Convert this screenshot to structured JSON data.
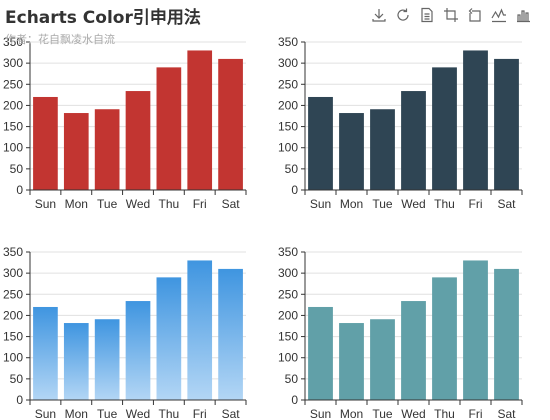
{
  "title": "Echarts Color引申用法",
  "subtitle": "作者：花自飘凌水自流",
  "toolbox": [
    {
      "name": "save-image-icon"
    },
    {
      "name": "restore-icon"
    },
    {
      "name": "data-view-icon"
    },
    {
      "name": "zoom-icon"
    },
    {
      "name": "zoom-reset-icon"
    },
    {
      "name": "line-chart-icon"
    },
    {
      "name": "bar-chart-icon"
    }
  ],
  "chart_data": [
    {
      "type": "bar",
      "categories": [
        "Sun",
        "Mon",
        "Tue",
        "Wed",
        "Thu",
        "Fri",
        "Sat"
      ],
      "values": [
        220,
        182,
        191,
        234,
        290,
        330,
        310
      ],
      "ylim": [
        0,
        350
      ],
      "yticks": [
        0,
        50,
        100,
        150,
        200,
        250,
        300,
        350
      ],
      "grid": true,
      "color": "#c23531",
      "fill": "solid"
    },
    {
      "type": "bar",
      "categories": [
        "Sun",
        "Mon",
        "Tue",
        "Wed",
        "Thu",
        "Fri",
        "Sat"
      ],
      "values": [
        220,
        182,
        191,
        234,
        290,
        330,
        310
      ],
      "ylim": [
        0,
        350
      ],
      "yticks": [
        0,
        50,
        100,
        150,
        200,
        250,
        300,
        350
      ],
      "grid": true,
      "color": "#2f4554",
      "fill": "solid"
    },
    {
      "type": "bar",
      "categories": [
        "Sun",
        "Mon",
        "Tue",
        "Wed",
        "Thu",
        "Fri",
        "Sat"
      ],
      "values": [
        220,
        182,
        191,
        234,
        290,
        330,
        310
      ],
      "ylim": [
        0,
        350
      ],
      "yticks": [
        0,
        50,
        100,
        150,
        200,
        250,
        300,
        350
      ],
      "grid": true,
      "color": "#3f95e0",
      "color_end": "#b3d6f5",
      "fill": "gradient"
    },
    {
      "type": "bar",
      "categories": [
        "Sun",
        "Mon",
        "Tue",
        "Wed",
        "Thu",
        "Fri",
        "Sat"
      ],
      "values": [
        220,
        182,
        191,
        234,
        290,
        330,
        310
      ],
      "ylim": [
        0,
        350
      ],
      "yticks": [
        0,
        50,
        100,
        150,
        200,
        250,
        300,
        350
      ],
      "grid": true,
      "color": "#61a0a8",
      "fill": "solid"
    }
  ]
}
